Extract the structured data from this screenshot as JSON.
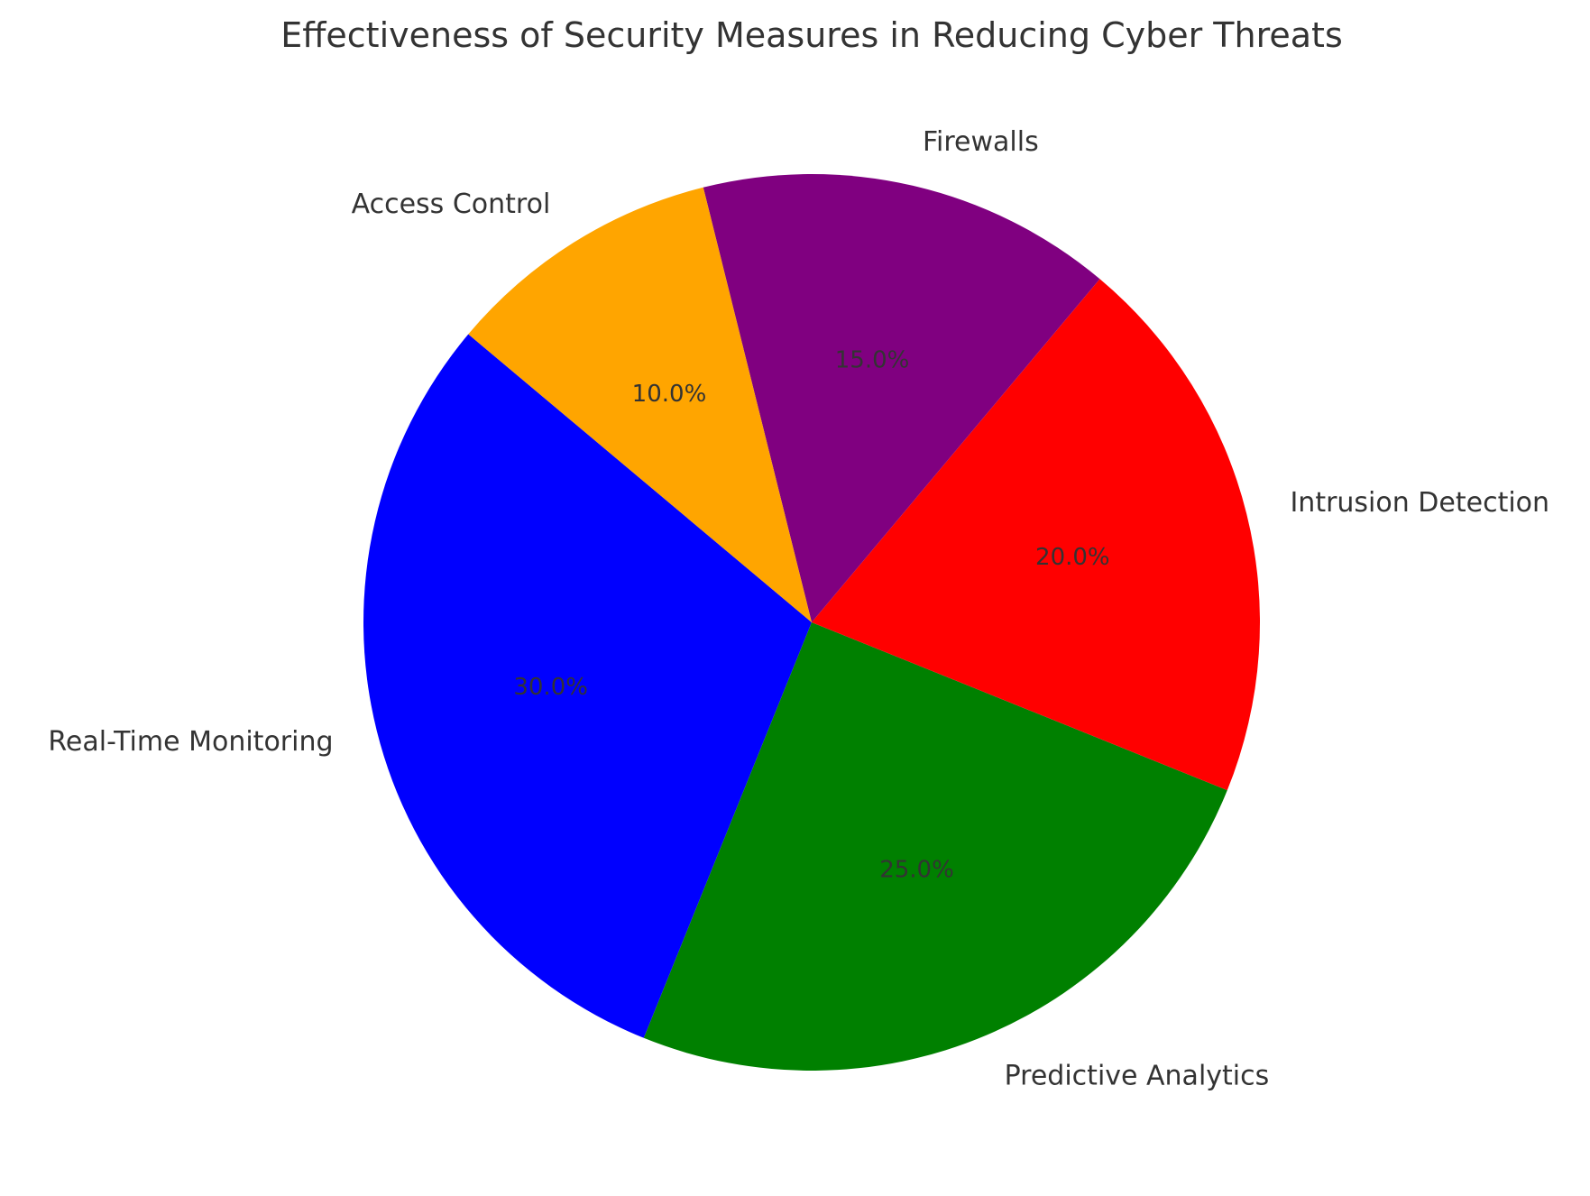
{
  "chart_data": {
    "type": "pie",
    "title": "Effectiveness of Security Measures in Reducing Cyber Threats",
    "categories": [
      "Real-Time Monitoring",
      "Predictive Analytics",
      "Intrusion Detection",
      "Firewalls",
      "Access Control"
    ],
    "values": [
      30.0,
      25.0,
      20.0,
      15.0,
      10.0
    ],
    "value_labels": [
      "30.0%",
      "25.0%",
      "20.0%",
      "15.0%",
      "10.0%"
    ],
    "colors": [
      "#0000ff",
      "#008000",
      "#ff0000",
      "#800080",
      "#ffa500"
    ],
    "start_angle_deg": 140,
    "direction": "counterclockwise",
    "legend": "none",
    "label_color": "#333333",
    "background": "#ffffff"
  }
}
